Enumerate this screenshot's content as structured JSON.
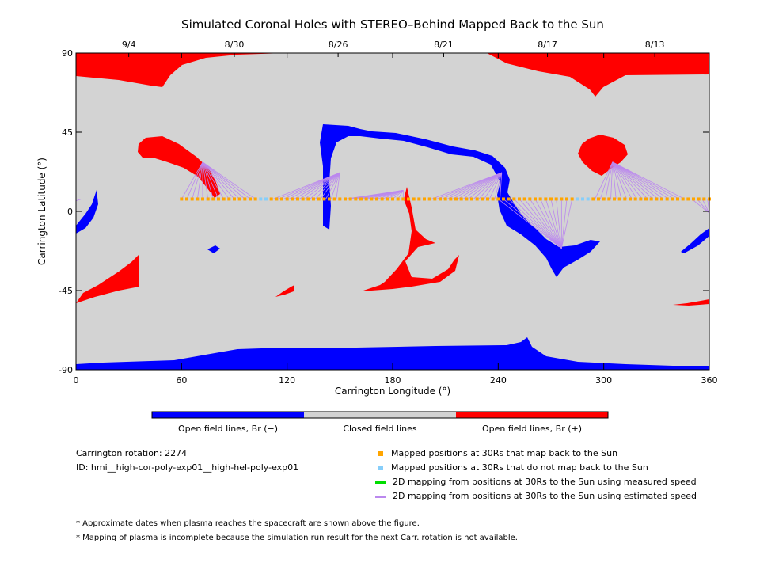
{
  "chart_data": {
    "type": "map",
    "title": "Simulated Coronal Holes with STEREO–Behind Mapped Back to the Sun",
    "xlabel": "Carrington Longitude (°)",
    "ylabel": "Carrington Latitude (°)",
    "xlim": [
      0,
      360
    ],
    "ylim": [
      -90,
      90
    ],
    "x_ticks": [
      "0",
      "60",
      "120",
      "180",
      "240",
      "300",
      "360"
    ],
    "y_ticks": [
      "90",
      "45",
      "0",
      "-45",
      "-90"
    ],
    "top_axis_dates": [
      {
        "label": "9/4",
        "lon": 30
      },
      {
        "label": "8/30",
        "lon": 90
      },
      {
        "label": "8/26",
        "lon": 149
      },
      {
        "label": "8/21",
        "lon": 209
      },
      {
        "label": "8/17",
        "lon": 268
      },
      {
        "label": "8/13",
        "lon": 329
      }
    ],
    "colors": {
      "background": "#d3d3d3",
      "open_negative": "#0000ff",
      "open_positive": "#ff0000",
      "mapped": "#ffa500",
      "unmapped": "#87cefa",
      "measured": "#00dd00",
      "estimated": "#bb88ee"
    },
    "colorbar_labels": [
      "Open field lines, Br (−)",
      "Closed field lines",
      "Open field lines, Br (+)"
    ],
    "mapped_latitude": 7,
    "unmapped_lon_ranges": [
      [
        104,
        110
      ],
      [
        283,
        292
      ]
    ],
    "line_groups": [
      {
        "source": [
          72,
          28
        ],
        "lon_from": 60,
        "lon_to": 102
      },
      {
        "source": [
          150,
          22
        ],
        "lon_from": 112,
        "lon_to": 150
      },
      {
        "source": [
          186,
          12
        ],
        "lon_from": 153,
        "lon_to": 186
      },
      {
        "source": [
          242,
          22
        ],
        "lon_from": 202,
        "lon_to": 242
      },
      {
        "source": [
          276,
          -21
        ],
        "lon_from": 240,
        "lon_to": 282
      },
      {
        "source": [
          305,
          28
        ],
        "lon_from": 295,
        "lon_to": 348
      },
      {
        "source": [
          360,
          -1
        ],
        "lon_from": 350,
        "lon_to": 360
      },
      {
        "source": [
          0,
          6
        ],
        "lon_from": 0,
        "lon_to": 5
      }
    ]
  },
  "legend": {
    "mapped": "Mapped positions at 30Rs that map back to the Sun",
    "unmapped": "Mapped positions at 30Rs that do not map back to the Sun",
    "measured": "2D mapping from positions at 30Rs to the Sun using measured speed",
    "estimated": "2D mapping from positions at 30Rs to the Sun using estimated speed"
  },
  "info": {
    "rotation": "Carrington rotation: 2274",
    "id": "ID: hmi__high-cor-poly-exp01__high-hel-poly-exp01"
  },
  "notes": [
    "* Approximate dates when plasma reaches the spacecraft are shown above the figure.",
    "* Mapping of plasma is incomplete because the simulation run result for the next Carr. rotation is not available."
  ]
}
